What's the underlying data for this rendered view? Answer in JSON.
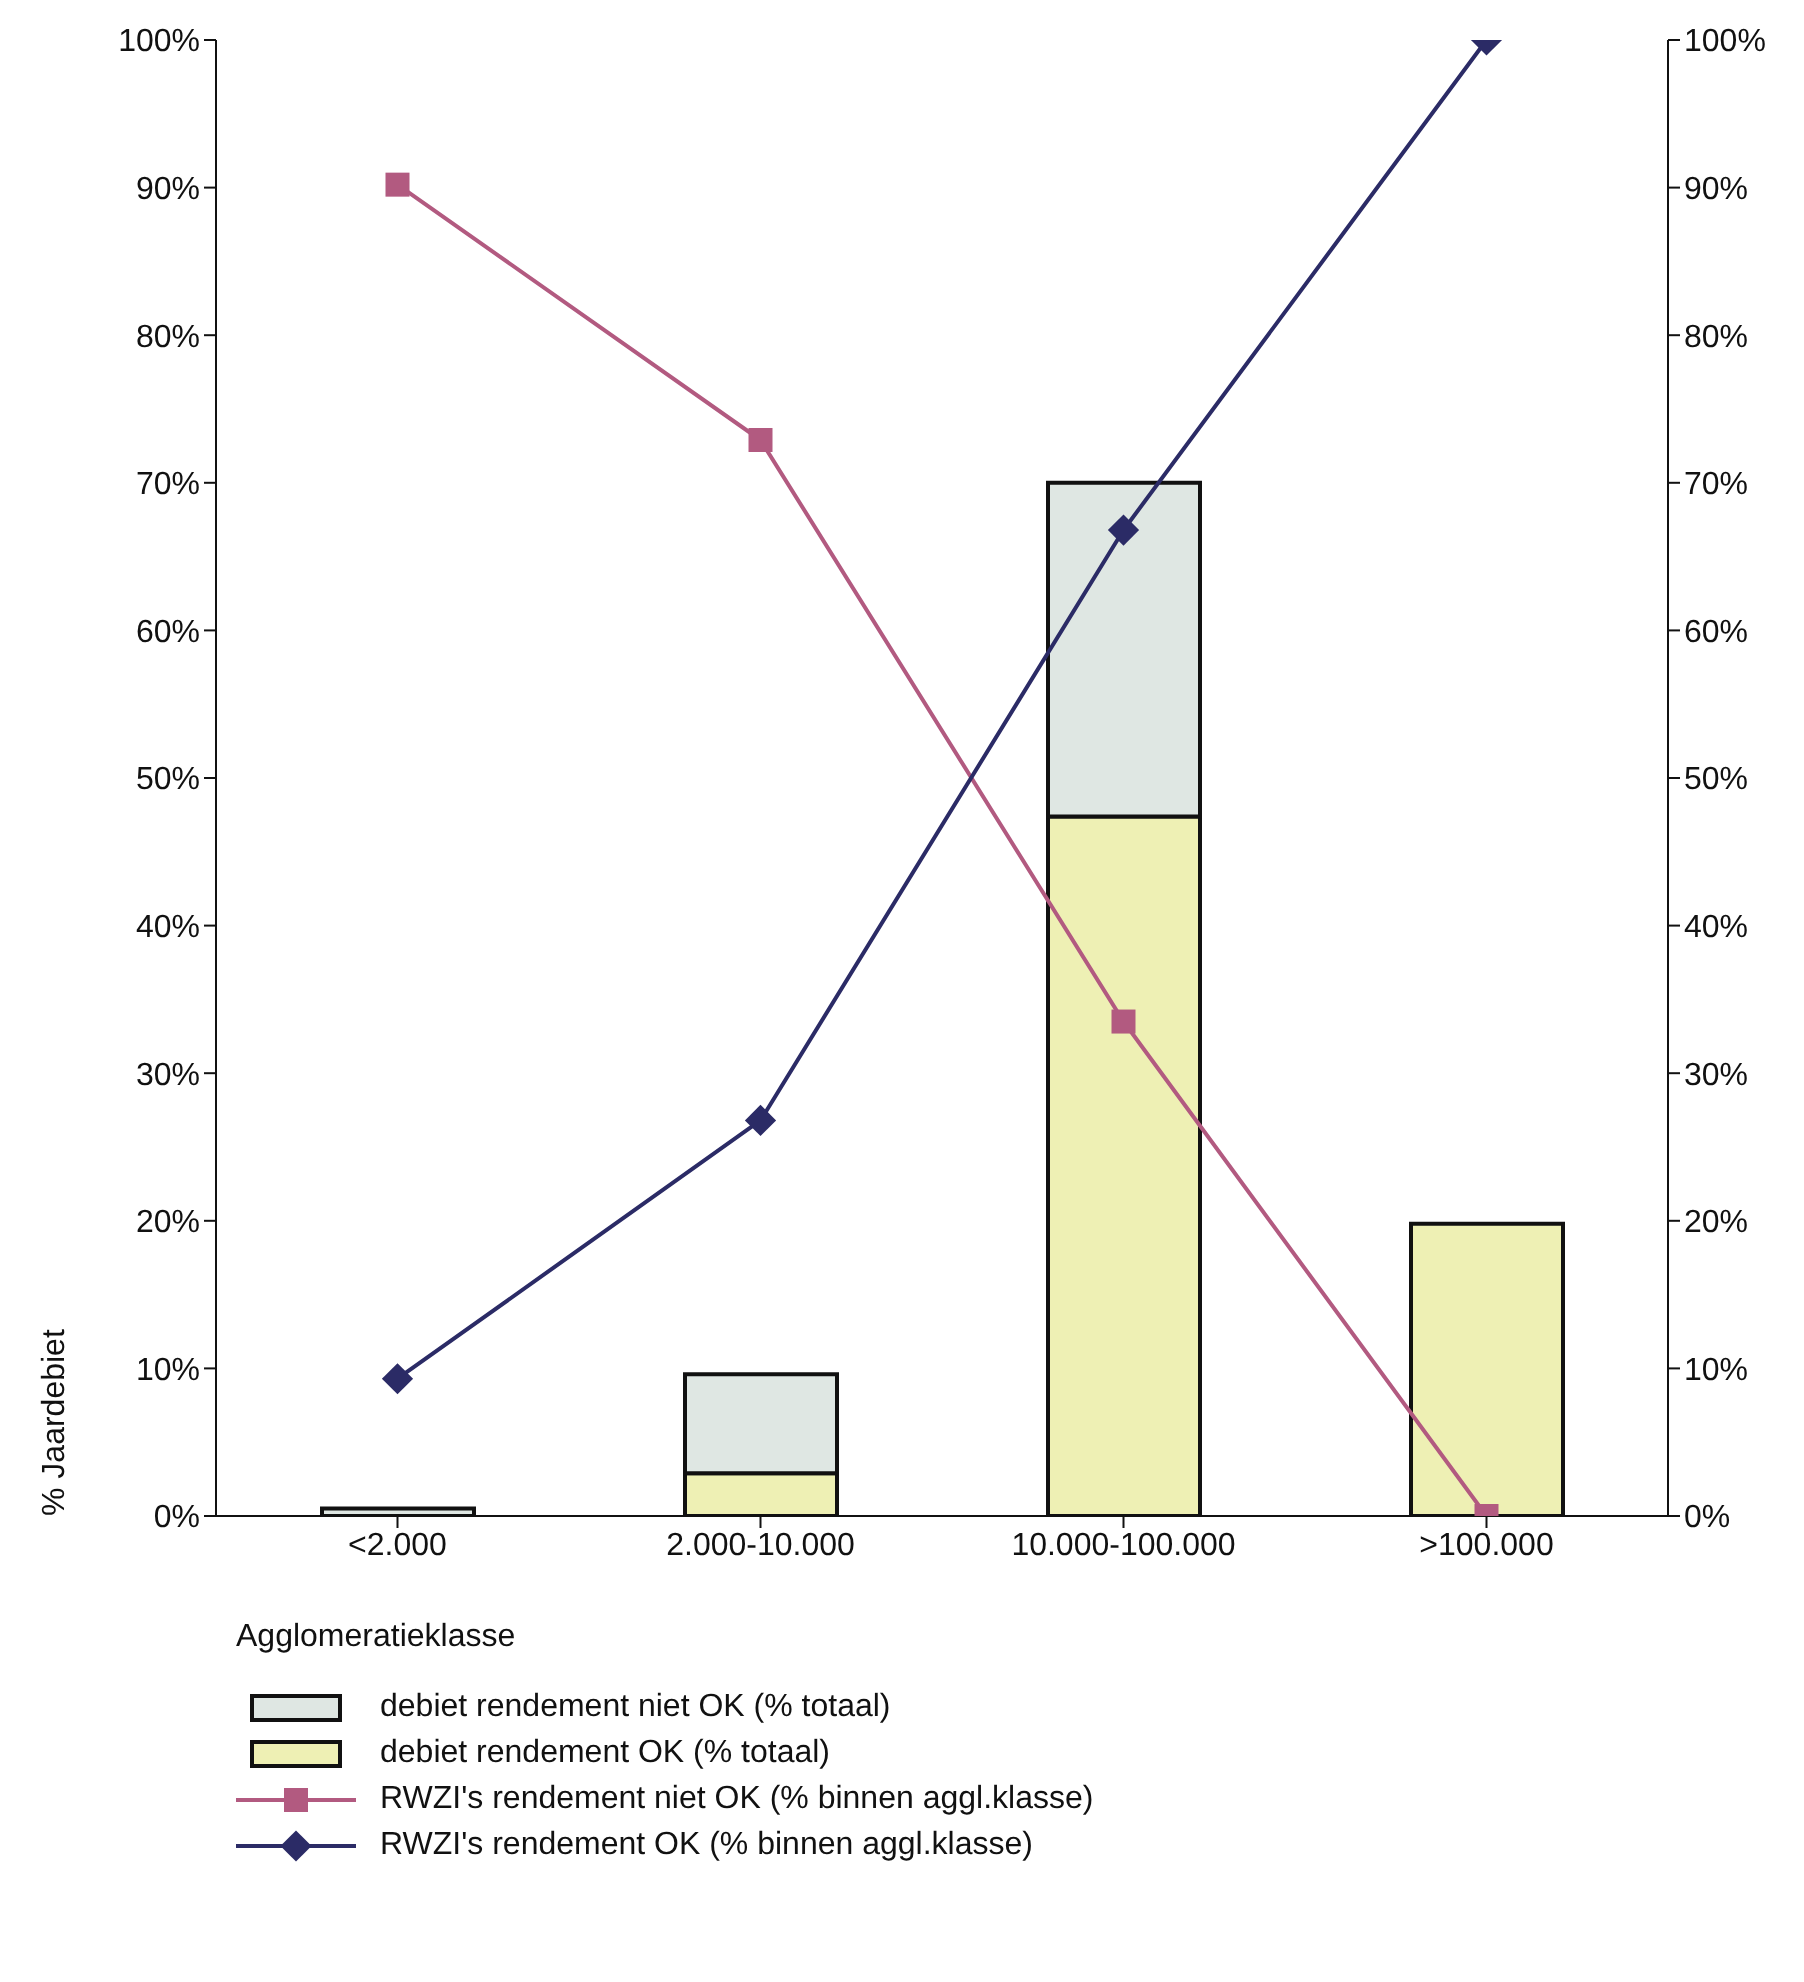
{
  "chart_data": {
    "type": "bar",
    "xlabel": "Agglomeratieklasse",
    "ylabel": "% Jaardebiet",
    "categories": [
      "<2.000",
      "2.000-10.000",
      "10.000-100.000",
      ">100.000"
    ],
    "stacked": true,
    "series": [
      {
        "name": "debiet rendement OK (% totaal)",
        "color": "#eef0b4",
        "values": [
          null,
          2.9,
          47.4,
          19.8
        ]
      },
      {
        "name": "debiet rendement niet OK (% totaal)",
        "color": "#dfe7e3",
        "values": [
          0.5,
          6.7,
          22.6,
          0
        ]
      },
      {
        "name": "RWZI's rendement niet OK (% binnen aggl.klasse)",
        "type": "line",
        "axis": "y2",
        "marker": "square",
        "color": "#b25a80",
        "values": [
          90.2,
          72.9,
          33.5,
          0
        ]
      },
      {
        "name": "RWZI's rendement OK (% binnen aggl.klasse)",
        "type": "line",
        "axis": "y2",
        "marker": "diamond",
        "color": "#2b2b66",
        "values": [
          9.3,
          26.8,
          66.8,
          100
        ]
      }
    ],
    "ylim": [
      0,
      100
    ],
    "yticks": [
      {
        "value": 0,
        "label": "0%"
      },
      {
        "value": 10,
        "label": "10%"
      },
      {
        "value": 20,
        "label": "20%"
      },
      {
        "value": 30,
        "label": "30%"
      },
      {
        "value": 40,
        "label": "40%"
      },
      {
        "value": 50,
        "label": "50%"
      },
      {
        "value": 60,
        "label": "60%"
      },
      {
        "value": 70,
        "label": "70%"
      },
      {
        "value": 80,
        "label": "80%"
      },
      {
        "value": 90,
        "label": "90%"
      },
      {
        "value": 100,
        "label": "100%"
      }
    ],
    "y2lim": [
      0,
      100
    ],
    "y2ticks": [
      {
        "value": 0,
        "label": "0%"
      },
      {
        "value": 10,
        "label": "10%"
      },
      {
        "value": 20,
        "label": "20%"
      },
      {
        "value": 30,
        "label": "30%"
      },
      {
        "value": 40,
        "label": "40%"
      },
      {
        "value": 50,
        "label": "50%"
      },
      {
        "value": 60,
        "label": "60%"
      },
      {
        "value": 70,
        "label": "70%"
      },
      {
        "value": 80,
        "label": "80%"
      },
      {
        "value": 90,
        "label": "90%"
      },
      {
        "value": 100,
        "label": "100%"
      }
    ],
    "grid": false,
    "legend": "bottom"
  }
}
